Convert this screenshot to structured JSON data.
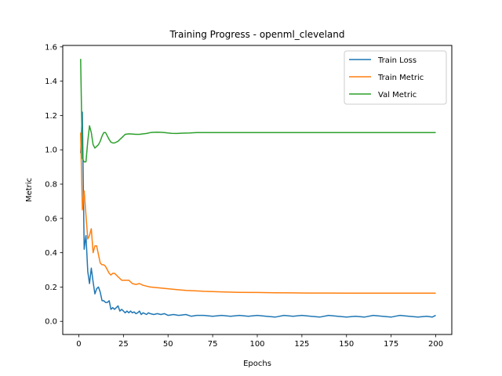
{
  "chart_data": {
    "type": "line",
    "title": "Training Progress - openml_cleveland",
    "xlabel": "Epochs",
    "ylabel": "Metric",
    "xlim": [
      -9,
      209
    ],
    "ylim": [
      -0.0766,
      1.6084
    ],
    "xticks": [
      0,
      25,
      50,
      75,
      100,
      125,
      150,
      175,
      200
    ],
    "yticks": [
      0.0,
      0.2,
      0.4,
      0.6,
      0.8,
      1.0,
      1.2,
      1.4,
      1.6
    ],
    "xtick_labels": [
      "0",
      "25",
      "50",
      "75",
      "100",
      "125",
      "150",
      "175",
      "200"
    ],
    "ytick_labels": [
      "0.0",
      "0.2",
      "0.4",
      "0.6",
      "0.8",
      "1.0",
      "1.2",
      "1.4",
      "1.6"
    ],
    "grid": false,
    "legend_position": "top-right",
    "series": [
      {
        "name": "Train Loss",
        "color": "#1f77b4",
        "points": [
          [
            1,
            0.98
          ],
          [
            2,
            1.22
          ],
          [
            3,
            0.42
          ],
          [
            4,
            0.5
          ],
          [
            5,
            0.29
          ],
          [
            6,
            0.22
          ],
          [
            7,
            0.31
          ],
          [
            8,
            0.23
          ],
          [
            9,
            0.16
          ],
          [
            10,
            0.19
          ],
          [
            11,
            0.2
          ],
          [
            12,
            0.17
          ],
          [
            13,
            0.12
          ],
          [
            14,
            0.12
          ],
          [
            15,
            0.11
          ],
          [
            16,
            0.11
          ],
          [
            17,
            0.12
          ],
          [
            18,
            0.07
          ],
          [
            19,
            0.08
          ],
          [
            20,
            0.07
          ],
          [
            21,
            0.08
          ],
          [
            22,
            0.09
          ],
          [
            23,
            0.06
          ],
          [
            24,
            0.07
          ],
          [
            25,
            0.06
          ],
          [
            26,
            0.05
          ],
          [
            27,
            0.06
          ],
          [
            28,
            0.05
          ],
          [
            29,
            0.06
          ],
          [
            30,
            0.05
          ],
          [
            31,
            0.055
          ],
          [
            32,
            0.045
          ],
          [
            33,
            0.05
          ],
          [
            34,
            0.06
          ],
          [
            35,
            0.04
          ],
          [
            36,
            0.05
          ],
          [
            37,
            0.045
          ],
          [
            38,
            0.04
          ],
          [
            39,
            0.05
          ],
          [
            40,
            0.045
          ],
          [
            42,
            0.04
          ],
          [
            44,
            0.045
          ],
          [
            46,
            0.04
          ],
          [
            48,
            0.045
          ],
          [
            50,
            0.035
          ],
          [
            53,
            0.04
          ],
          [
            56,
            0.035
          ],
          [
            60,
            0.04
          ],
          [
            63,
            0.03
          ],
          [
            66,
            0.035
          ],
          [
            70,
            0.035
          ],
          [
            75,
            0.03
          ],
          [
            80,
            0.035
          ],
          [
            85,
            0.03
          ],
          [
            90,
            0.035
          ],
          [
            95,
            0.03
          ],
          [
            100,
            0.035
          ],
          [
            105,
            0.03
          ],
          [
            110,
            0.025
          ],
          [
            115,
            0.035
          ],
          [
            120,
            0.03
          ],
          [
            125,
            0.035
          ],
          [
            130,
            0.03
          ],
          [
            135,
            0.025
          ],
          [
            140,
            0.035
          ],
          [
            145,
            0.03
          ],
          [
            150,
            0.025
          ],
          [
            155,
            0.03
          ],
          [
            160,
            0.025
          ],
          [
            165,
            0.035
          ],
          [
            170,
            0.03
          ],
          [
            175,
            0.025
          ],
          [
            180,
            0.035
          ],
          [
            185,
            0.03
          ],
          [
            190,
            0.025
          ],
          [
            195,
            0.03
          ],
          [
            198,
            0.025
          ],
          [
            200,
            0.035
          ]
        ]
      },
      {
        "name": "Train Metric",
        "color": "#ff7f0e",
        "points": [
          [
            1,
            1.1
          ],
          [
            2,
            0.65
          ],
          [
            3,
            0.76
          ],
          [
            4,
            0.62
          ],
          [
            5,
            0.48
          ],
          [
            6,
            0.5
          ],
          [
            7,
            0.54
          ],
          [
            8,
            0.4
          ],
          [
            9,
            0.44
          ],
          [
            10,
            0.44
          ],
          [
            11,
            0.39
          ],
          [
            12,
            0.34
          ],
          [
            13,
            0.33
          ],
          [
            14,
            0.33
          ],
          [
            15,
            0.32
          ],
          [
            16,
            0.3
          ],
          [
            17,
            0.28
          ],
          [
            18,
            0.27
          ],
          [
            19,
            0.28
          ],
          [
            20,
            0.28
          ],
          [
            21,
            0.27
          ],
          [
            22,
            0.26
          ],
          [
            23,
            0.25
          ],
          [
            24,
            0.24
          ],
          [
            25,
            0.24
          ],
          [
            26,
            0.24
          ],
          [
            28,
            0.24
          ],
          [
            30,
            0.22
          ],
          [
            32,
            0.215
          ],
          [
            34,
            0.22
          ],
          [
            36,
            0.21
          ],
          [
            38,
            0.205
          ],
          [
            40,
            0.2
          ],
          [
            45,
            0.195
          ],
          [
            50,
            0.19
          ],
          [
            55,
            0.185
          ],
          [
            60,
            0.18
          ],
          [
            65,
            0.178
          ],
          [
            70,
            0.175
          ],
          [
            80,
            0.172
          ],
          [
            90,
            0.169
          ],
          [
            100,
            0.168
          ],
          [
            110,
            0.167
          ],
          [
            120,
            0.166
          ],
          [
            130,
            0.165
          ],
          [
            140,
            0.165
          ],
          [
            150,
            0.164
          ],
          [
            160,
            0.164
          ],
          [
            170,
            0.164
          ],
          [
            180,
            0.164
          ],
          [
            190,
            0.164
          ],
          [
            200,
            0.164
          ]
        ]
      },
      {
        "name": "Val Metric",
        "color": "#2ca02c",
        "points": [
          [
            1,
            1.53
          ],
          [
            2,
            0.95
          ],
          [
            3,
            0.93
          ],
          [
            4,
            0.93
          ],
          [
            5,
            1.05
          ],
          [
            6,
            1.14
          ],
          [
            7,
            1.1
          ],
          [
            8,
            1.03
          ],
          [
            9,
            1.01
          ],
          [
            10,
            1.02
          ],
          [
            11,
            1.03
          ],
          [
            12,
            1.05
          ],
          [
            13,
            1.08
          ],
          [
            14,
            1.1
          ],
          [
            15,
            1.1
          ],
          [
            16,
            1.08
          ],
          [
            17,
            1.06
          ],
          [
            18,
            1.045
          ],
          [
            19,
            1.04
          ],
          [
            20,
            1.04
          ],
          [
            21,
            1.045
          ],
          [
            22,
            1.05
          ],
          [
            23,
            1.06
          ],
          [
            24,
            1.07
          ],
          [
            25,
            1.08
          ],
          [
            26,
            1.09
          ],
          [
            28,
            1.093
          ],
          [
            30,
            1.092
          ],
          [
            32,
            1.09
          ],
          [
            34,
            1.09
          ],
          [
            36,
            1.093
          ],
          [
            38,
            1.095
          ],
          [
            40,
            1.1
          ],
          [
            42,
            1.102
          ],
          [
            44,
            1.103
          ],
          [
            46,
            1.102
          ],
          [
            48,
            1.1
          ],
          [
            50,
            1.098
          ],
          [
            52,
            1.096
          ],
          [
            55,
            1.095
          ],
          [
            58,
            1.097
          ],
          [
            62,
            1.098
          ],
          [
            66,
            1.1
          ],
          [
            70,
            1.1
          ],
          [
            80,
            1.1
          ],
          [
            90,
            1.1
          ],
          [
            100,
            1.1
          ],
          [
            120,
            1.1
          ],
          [
            140,
            1.1
          ],
          [
            160,
            1.1
          ],
          [
            180,
            1.1
          ],
          [
            200,
            1.1
          ]
        ]
      }
    ]
  }
}
